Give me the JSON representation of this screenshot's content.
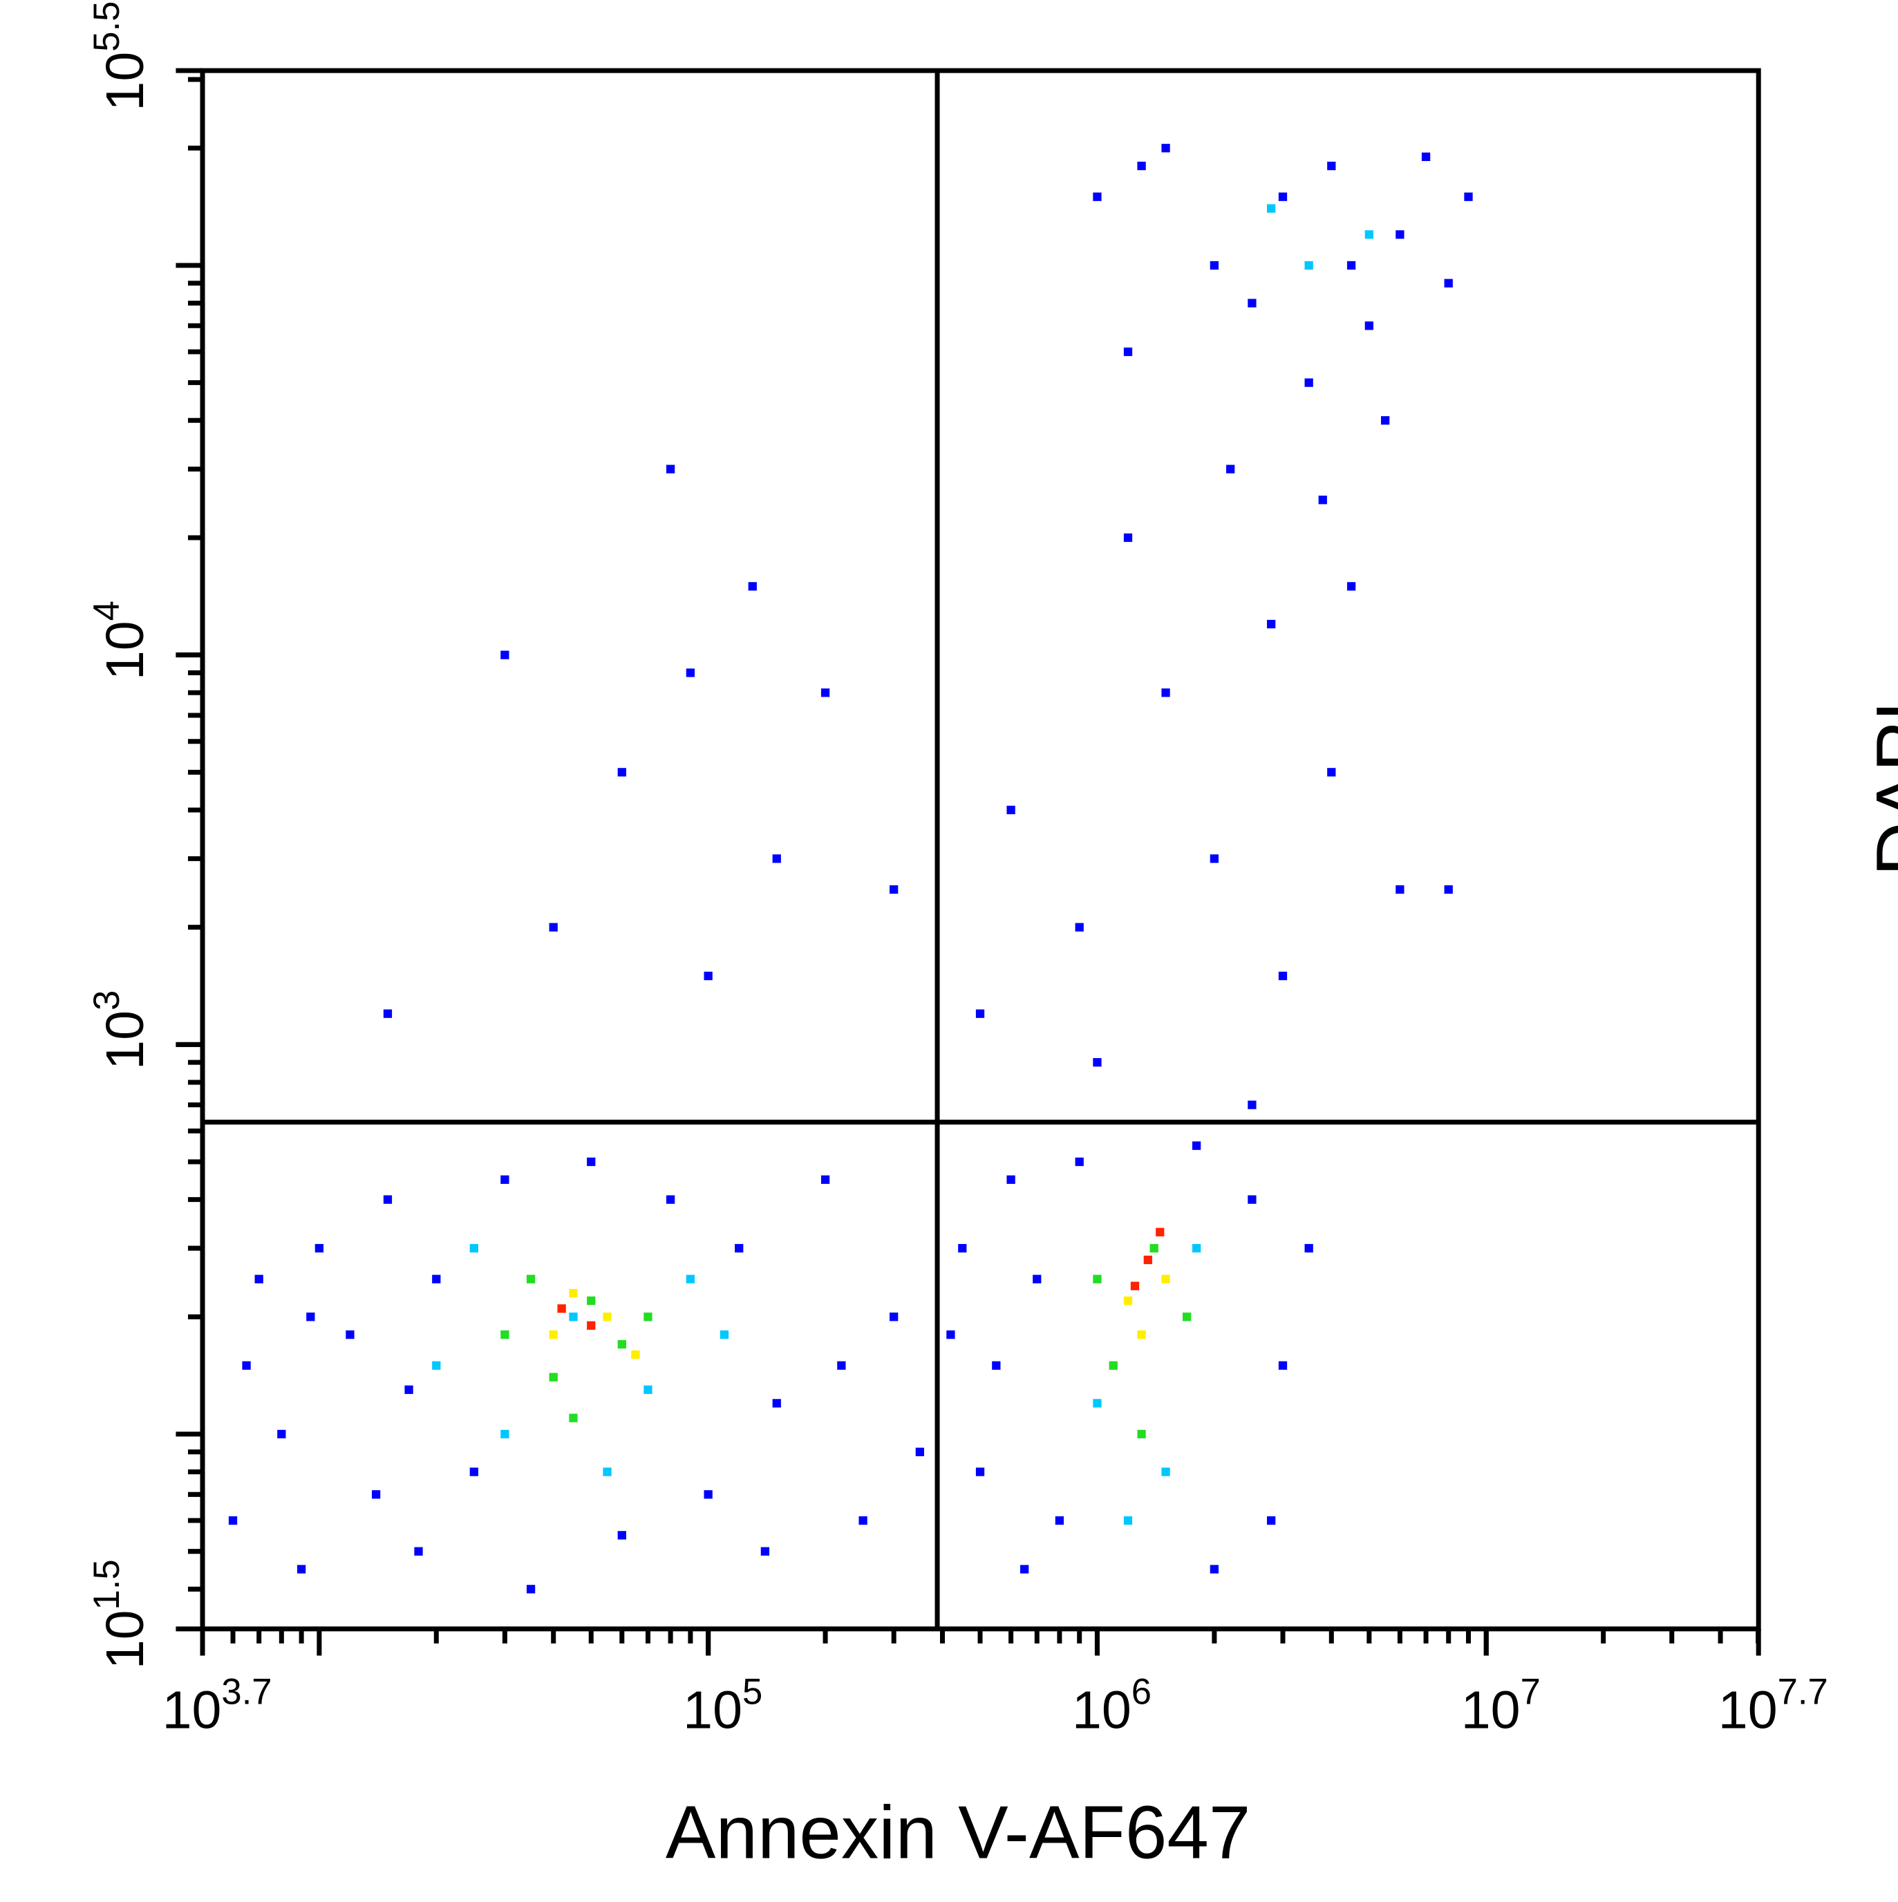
{
  "chart_data": {
    "type": "scatter",
    "x_label": "Annexin V-AF647",
    "y_label": "DAPI",
    "xlim": [
      5011.872,
      50118723.36
    ],
    "ylim": [
      31.6228,
      316227.77
    ],
    "log_x": true,
    "log_y": true,
    "xticks": [
      {
        "value": 5011.872,
        "label": "10^3.7"
      },
      {
        "value": 100000,
        "label": "10^5"
      },
      {
        "value": 1000000,
        "label": "10^6"
      },
      {
        "value": 10000000,
        "label": "10^7"
      },
      {
        "value": 50118723.36,
        "label": "10^7.7"
      }
    ],
    "yticks": [
      {
        "value": 31.6228,
        "label": "10^1.5"
      },
      {
        "value": 1000,
        "label": "10^3"
      },
      {
        "value": 10000,
        "label": "10^4"
      },
      {
        "value": 316227.77,
        "label": "10^5.5"
      }
    ],
    "gates": {
      "x": 388000,
      "y": 632
    },
    "series": [
      {
        "color": "#0000ff",
        "x": [
          6000,
          7000,
          8000,
          9000,
          10000,
          12000,
          14000,
          15000,
          18000,
          20000,
          25000,
          30000,
          35000,
          50000,
          60000,
          80000,
          100000,
          120000,
          150000,
          200000,
          250000,
          300000,
          350000,
          6500,
          9500,
          17000,
          140000,
          220000,
          450000,
          500000,
          550000,
          600000,
          650000,
          700000,
          800000,
          900000,
          2500000,
          3000000,
          3500000,
          2800000,
          2000000,
          1800000,
          420000,
          1000000,
          1200000,
          1500000,
          2000000,
          2500000,
          3000000,
          3500000,
          4000000,
          4500000,
          5000000,
          6000000,
          7000000,
          8000000,
          2200000,
          3800000,
          5500000,
          9000000,
          1300000,
          30000,
          60000,
          90000,
          150000,
          200000,
          15000,
          40000,
          100000,
          300000,
          80000,
          130000,
          600000,
          900000,
          1500000,
          2000000,
          3000000,
          1000000,
          2500000,
          4000000,
          6000000,
          8000000,
          500000,
          1200000,
          2800000,
          4500000
        ],
        "y": [
          60,
          250,
          100,
          45,
          300,
          180,
          70,
          400,
          50,
          250,
          80,
          450,
          40,
          500,
          55,
          400,
          70,
          300,
          120,
          450,
          60,
          200,
          90,
          150,
          200,
          130,
          50,
          150,
          300,
          80,
          150,
          450,
          45,
          250,
          60,
          500,
          400,
          150,
          300,
          60,
          45,
          550,
          180,
          150000,
          60000,
          200000,
          100000,
          80000,
          150000,
          50000,
          180000,
          100000,
          70000,
          120000,
          190000,
          90000,
          30000,
          25000,
          40000,
          150000,
          180000,
          10000,
          5000,
          9000,
          3000,
          8000,
          1200,
          2000,
          1500,
          2500,
          30000,
          15000,
          4000,
          2000,
          8000,
          3000,
          1500,
          900,
          700,
          5000,
          2500,
          2500,
          1200,
          20000,
          12000,
          15000
        ]
      },
      {
        "color": "#00c8ff",
        "x": [
          20000,
          30000,
          45000,
          70000,
          90000,
          25000,
          110000,
          55000,
          1000000,
          1500000,
          1800000,
          1200000,
          3500000,
          5000000,
          2800000
        ],
        "y": [
          150,
          100,
          200,
          130,
          250,
          300,
          180,
          80,
          120,
          80,
          300,
          60,
          100000,
          120000,
          140000
        ]
      },
      {
        "color": "#22dd22",
        "x": [
          30000,
          40000,
          50000,
          60000,
          35000,
          70000,
          45000,
          1100000,
          1400000,
          1700000,
          1000000,
          1300000
        ],
        "y": [
          180,
          140,
          220,
          170,
          250,
          200,
          110,
          150,
          300,
          200,
          250,
          100
        ]
      },
      {
        "color": "#ffee00",
        "x": [
          40000,
          55000,
          45000,
          65000,
          1200000,
          1500000,
          1300000
        ],
        "y": [
          180,
          200,
          230,
          160,
          220,
          250,
          180
        ]
      },
      {
        "color": "#ff2200",
        "x": [
          50000,
          42000,
          1350000,
          1450000,
          1250000
        ],
        "y": [
          190,
          210,
          280,
          330,
          240
        ]
      }
    ]
  }
}
